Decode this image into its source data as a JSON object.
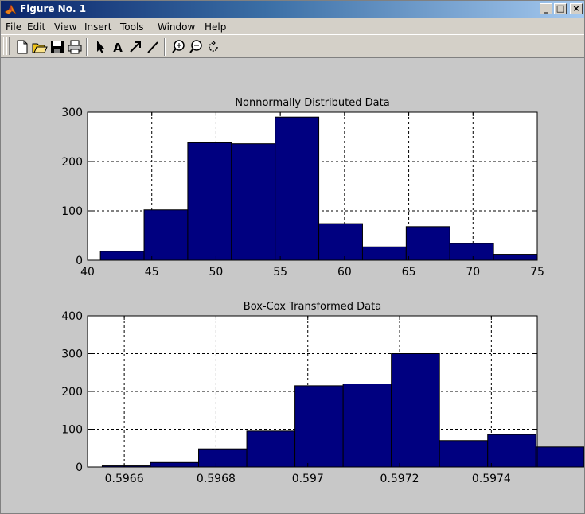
{
  "window": {
    "title": "Figure No. 1",
    "minimize_label": "_",
    "maximize_label": "□",
    "close_label": "×"
  },
  "menu": [
    "File",
    "Edit",
    "View",
    "Insert",
    "Tools",
    "Window",
    "Help"
  ],
  "toolbar": {
    "buttons": [
      "new-file-icon",
      "open-folder-icon",
      "save-icon",
      "print-icon",
      "arrow-cursor-icon",
      "text-tool-icon",
      "arrow-tool-icon",
      "line-tool-icon",
      "zoom-in-icon",
      "zoom-out-icon",
      "rotate-icon"
    ],
    "text_tool_glyph": "A"
  },
  "colors": {
    "bar_fill": "#000080",
    "bar_edge": "#000000",
    "axes_bg": "#ffffff",
    "figure_bg": "#c8c8c8"
  },
  "chart_data": [
    {
      "type": "bar",
      "title": "Nonnormally Distributed Data",
      "xlabel": "",
      "ylabel": "",
      "xlim": [
        40,
        75
      ],
      "ylim": [
        0,
        300
      ],
      "xticks": [
        40,
        45,
        50,
        55,
        60,
        65,
        70,
        75
      ],
      "yticks": [
        0,
        100,
        200,
        300
      ],
      "xtick_labels": [
        "40",
        "45",
        "50",
        "55",
        "60",
        "65",
        "70",
        "75"
      ],
      "ytick_labels": [
        "0",
        "100",
        "200",
        "300"
      ],
      "grid": true,
      "bins": [
        {
          "x0": 41.0,
          "x1": 44.4,
          "value": 18
        },
        {
          "x0": 44.4,
          "x1": 47.8,
          "value": 102
        },
        {
          "x0": 47.8,
          "x1": 51.2,
          "value": 238
        },
        {
          "x0": 51.2,
          "x1": 54.6,
          "value": 236
        },
        {
          "x0": 54.6,
          "x1": 58.0,
          "value": 290
        },
        {
          "x0": 58.0,
          "x1": 61.4,
          "value": 74
        },
        {
          "x0": 61.4,
          "x1": 64.8,
          "value": 27
        },
        {
          "x0": 64.8,
          "x1": 68.2,
          "value": 68
        },
        {
          "x0": 68.2,
          "x1": 71.6,
          "value": 34
        },
        {
          "x0": 71.6,
          "x1": 75.0,
          "value": 12
        }
      ]
    },
    {
      "type": "bar",
      "title": "Box-Cox Transformed Data",
      "xlabel": "",
      "ylabel": "",
      "xlim": [
        0.59652,
        0.5975
      ],
      "ylim": [
        0,
        400
      ],
      "xticks": [
        0.5966,
        0.5968,
        0.597,
        0.5972,
        0.5974
      ],
      "yticks": [
        0,
        100,
        200,
        300,
        400
      ],
      "xtick_labels": [
        "0.5966",
        "0.5968",
        "0.597",
        "0.5972",
        "0.5974"
      ],
      "ytick_labels": [
        "0",
        "100",
        "200",
        "300",
        "400"
      ],
      "grid": true,
      "bins": [
        {
          "x0": 0.596552,
          "x1": 0.596657,
          "value": 3
        },
        {
          "x0": 0.596657,
          "x1": 0.596762,
          "value": 12
        },
        {
          "x0": 0.596762,
          "x1": 0.596867,
          "value": 48
        },
        {
          "x0": 0.596867,
          "x1": 0.596972,
          "value": 95
        },
        {
          "x0": 0.596972,
          "x1": 0.597077,
          "value": 215
        },
        {
          "x0": 0.597077,
          "x1": 0.597182,
          "value": 220
        },
        {
          "x0": 0.597182,
          "x1": 0.597287,
          "value": 300
        },
        {
          "x0": 0.597287,
          "x1": 0.597392,
          "value": 70
        },
        {
          "x0": 0.597392,
          "x1": 0.597497,
          "value": 86
        },
        {
          "x0": 0.597497,
          "x1": 0.597602,
          "value": 53
        }
      ]
    }
  ]
}
